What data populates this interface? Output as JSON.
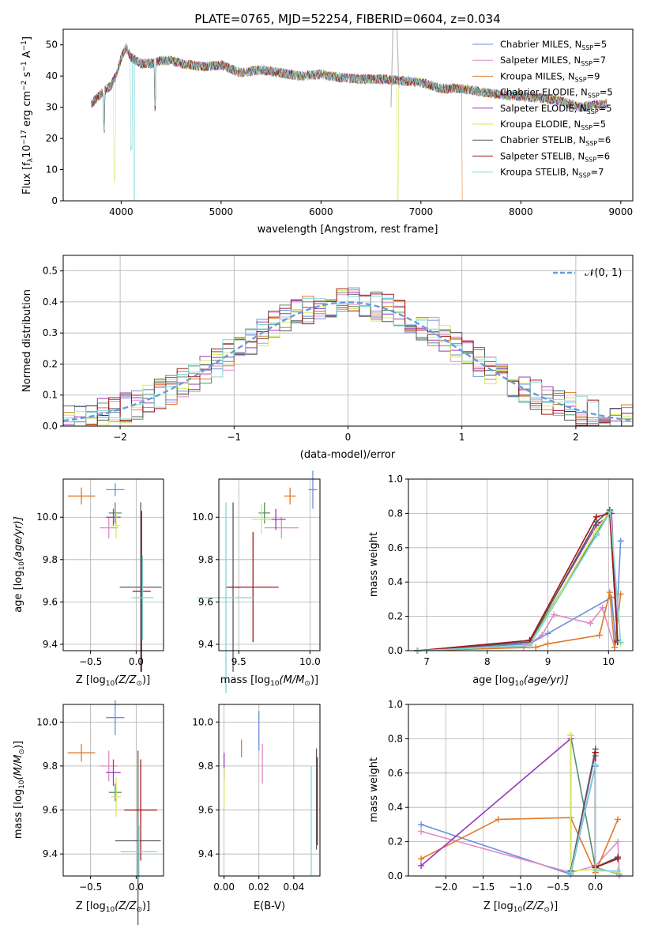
{
  "colors": {
    "chabrier_miles": "#6a8fdc",
    "salpeter_miles": "#e08bc6",
    "kroupa_miles": "#e07a28",
    "chabrier_elodie": "#5a8f6a",
    "salpeter_elodie": "#9a38b8",
    "kroupa_elodie": "#d8e85a",
    "chabrier_stelib": "#5a5a5a",
    "salpeter_stelib": "#a01818",
    "kroupa_stelib": "#7fd6d6",
    "normal_curve": "#6a9adc",
    "masked": "#b8b8b8"
  },
  "series_names": {
    "chabrier_miles": "Chabrier MILES, N",
    "salpeter_miles": "Salpeter MILES, N",
    "kroupa_miles": "Kroupa MILES, N",
    "chabrier_elodie": "Chabrier ELODIE, N",
    "salpeter_elodie": "Salpeter ELODIE, N",
    "kroupa_elodie": "Kroupa ELODIE, N",
    "chabrier_stelib": "Chabrier STELIB, N",
    "salpeter_stelib": "Salpeter STELIB, N",
    "kroupa_stelib": "Kroupa STELIB, N"
  },
  "nssp": {
    "chabrier_miles": "=5",
    "salpeter_miles": "=7",
    "kroupa_miles": "=9",
    "chabrier_elodie": "=5",
    "salpeter_elodie": "=5",
    "kroupa_elodie": "=5",
    "chabrier_stelib": "=6",
    "salpeter_stelib": "=6",
    "kroupa_stelib": "=7"
  },
  "legend_sub": "SSP",
  "chart_data": [
    {
      "id": "spectrum",
      "type": "line",
      "title": "PLATE=0765, MJD=52254, FIBERID=0604, z=0.034",
      "xlabel": "wavelength [Angstrom, rest frame]",
      "ylabel_parts": {
        "a": "Flux [f",
        "sub": "λ",
        "b": "10",
        "sup1": "−17",
        "c": " erg cm",
        "sup2": "−2",
        "d": " s",
        "sup3": "−1",
        "e": " A",
        "sup4": "−1",
        "f": "]"
      },
      "xlim": [
        3420,
        9120
      ],
      "ylim": [
        0,
        55
      ],
      "xticks": [
        4000,
        5000,
        6000,
        7000,
        8000,
        9000
      ],
      "yticks": [
        0,
        10,
        20,
        30,
        40,
        50
      ],
      "grid": false,
      "legend_position": "top-right",
      "continuum": {
        "x": [
          3700,
          3760,
          3820,
          3900,
          3960,
          4000,
          4050,
          4100,
          4200,
          4300,
          4400,
          4500,
          4600,
          4800,
          5000,
          5200,
          5400,
          5600,
          5800,
          6000,
          6200,
          6400,
          6600,
          6800,
          7000,
          7200,
          7400,
          7600,
          7800,
          8000,
          8200,
          8400,
          8600,
          8800
        ],
        "y": [
          31,
          33,
          35,
          37,
          41,
          46,
          49,
          46,
          44,
          44,
          45,
          45,
          44,
          43,
          43.5,
          41,
          42,
          41,
          40,
          40.5,
          39.5,
          39,
          39,
          38.5,
          38,
          36,
          36,
          35,
          34,
          33.5,
          33,
          32,
          30,
          31
        ]
      },
      "features": [
        {
          "x": 3934,
          "depth": 32,
          "series": "kroupa_elodie"
        },
        {
          "x": 4102,
          "depth": 30,
          "series": "kroupa_stelib"
        },
        {
          "x": 4130,
          "depth": 55,
          "series": "kroupa_stelib"
        },
        {
          "x": 4340,
          "depth": 14,
          "series": "all"
        },
        {
          "x": 3830,
          "depth": 12,
          "series": "all"
        },
        {
          "x": 6770,
          "depth": 40,
          "series": "kroupa_elodie"
        },
        {
          "x": 7420,
          "depth": 38,
          "series": "kroupa_miles"
        }
      ],
      "masked_region": {
        "x": [
          6700,
          6780
        ],
        "ymax": 55
      }
    },
    {
      "id": "residuals",
      "type": "histogram",
      "xlabel": "(data-model)/error",
      "ylabel": "Normed distribution",
      "xlim": [
        -2.5,
        2.5
      ],
      "ylim": [
        0,
        0.55
      ],
      "xticks": [
        -2,
        -1,
        0,
        1,
        2
      ],
      "xtick_labels": [
        "−2",
        "−1",
        "0",
        "1",
        "2"
      ],
      "yticks": [
        0.0,
        0.1,
        0.2,
        0.3,
        0.4,
        0.5
      ],
      "ytick_labels": [
        "0.0",
        "0.1",
        "0.2",
        "0.3",
        "0.4",
        "0.5"
      ],
      "grid": true,
      "legend": "𝒩(0, 1)",
      "legend_position": "top-right",
      "bin_width": 0.1
    },
    {
      "id": "age_vs_Z",
      "type": "errorbar",
      "xlabel_parts": {
        "a": "Z [log",
        "sub": "10",
        "b": "(Z/Z",
        "sub2": "⊙",
        "c": ")]"
      },
      "ylabel_parts": {
        "a": "age  [log",
        "sub": "10",
        "b": "(age/yr)]"
      },
      "xlim": [
        -0.8,
        0.3
      ],
      "ylim": [
        9.37,
        10.18
      ],
      "xticks": [
        -0.5,
        0.0
      ],
      "xtick_labels": [
        "−0.5",
        "0.0"
      ],
      "yticks": [
        9.4,
        9.6,
        9.8,
        10.0
      ],
      "ytick_labels": [
        "9.4",
        "9.6",
        "9.8",
        "10.0"
      ],
      "points": [
        {
          "s": "kroupa_miles",
          "x": -0.6,
          "y": 10.1,
          "xe": 0.15,
          "ye": 0.04
        },
        {
          "s": "chabrier_miles",
          "x": -0.23,
          "y": 10.13,
          "xe": 0.1,
          "ye": 0.03
        },
        {
          "s": "salpeter_miles",
          "x": -0.3,
          "y": 9.95,
          "xe": 0.1,
          "ye": 0.05
        },
        {
          "s": "chabrier_elodie",
          "x": -0.23,
          "y": 10.02,
          "xe": 0.07,
          "ye": 0.05
        },
        {
          "s": "salpeter_elodie",
          "x": -0.25,
          "y": 10.0,
          "xe": 0.08,
          "ye": 0.04
        },
        {
          "s": "kroupa_elodie",
          "x": -0.22,
          "y": 9.96,
          "xe": 0.05,
          "ye": 0.06
        },
        {
          "s": "chabrier_stelib",
          "x": 0.05,
          "y": 9.67,
          "xe": 0.23,
          "ye": 0.4
        },
        {
          "s": "salpeter_stelib",
          "x": 0.06,
          "y": 9.65,
          "xe": 0.1,
          "ye": 0.38
        },
        {
          "s": "kroupa_stelib",
          "x": 0.07,
          "y": 9.62,
          "xe": 0.12,
          "ye": 0.2
        }
      ]
    },
    {
      "id": "age_vs_mass",
      "type": "errorbar",
      "xlabel_parts": {
        "a": "mass [log",
        "sub": "10",
        "b": "(M/M",
        "sub2": "⊙",
        "c": ")]"
      },
      "xlim": [
        9.36,
        10.07
      ],
      "ylim": [
        9.37,
        10.18
      ],
      "xticks": [
        9.5,
        10.0
      ],
      "xtick_labels": [
        "9.5",
        "10.0"
      ],
      "yticks": [
        9.4,
        9.6,
        9.8,
        10.0
      ],
      "ytick_labels": [
        "9.4",
        "9.6",
        "9.8",
        "10.0"
      ],
      "points": [
        {
          "s": "kroupa_miles",
          "x": 9.86,
          "y": 10.1,
          "xe": 0.04,
          "ye": 0.04
        },
        {
          "s": "chabrier_miles",
          "x": 10.02,
          "y": 10.13,
          "xe": 0.03,
          "ye": 0.09
        },
        {
          "s": "salpeter_miles",
          "x": 9.8,
          "y": 9.95,
          "xe": 0.12,
          "ye": 0.05
        },
        {
          "s": "chabrier_elodie",
          "x": 9.68,
          "y": 10.02,
          "xe": 0.04,
          "ye": 0.05
        },
        {
          "s": "salpeter_elodie",
          "x": 9.76,
          "y": 9.99,
          "xe": 0.07,
          "ye": 0.05
        },
        {
          "s": "kroupa_elodie",
          "x": 9.66,
          "y": 9.99,
          "xe": 0.07,
          "ye": 0.07
        },
        {
          "s": "chabrier_stelib",
          "x": 9.46,
          "y": 9.67,
          "xe": 0.05,
          "ye": 0.4
        },
        {
          "s": "salpeter_stelib",
          "x": 9.6,
          "y": 9.67,
          "xe": 0.18,
          "ye": 0.26
        },
        {
          "s": "kroupa_stelib",
          "x": 9.41,
          "y": 9.62,
          "xe": 0.2,
          "ye": 0.45
        }
      ]
    },
    {
      "id": "weight_vs_age",
      "type": "line",
      "xlabel_parts": {
        "a": "age  [log",
        "sub": "10",
        "b": "(age/yr)]"
      },
      "ylabel": "mass weight",
      "xlim": [
        6.7,
        10.4
      ],
      "ylim": [
        0,
        1.0
      ],
      "xticks": [
        7,
        8,
        9,
        10
      ],
      "xtick_labels": [
        "7",
        "8",
        "9",
        "10"
      ],
      "yticks": [
        0.0,
        0.2,
        0.4,
        0.6,
        0.8,
        1.0
      ],
      "ytick_labels": [
        "0.0",
        "0.2",
        "0.4",
        "0.6",
        "0.8",
        "1.0"
      ],
      "grid": true,
      "series": [
        {
          "s": "chabrier_miles",
          "x": [
            6.85,
            8.7,
            9.0,
            10.05,
            10.12,
            10.2
          ],
          "y": [
            0.0,
            0.04,
            0.1,
            0.31,
            0.05,
            0.64
          ]
        },
        {
          "s": "salpeter_miles",
          "x": [
            6.85,
            8.6,
            8.9,
            9.1,
            9.7,
            9.9,
            10.1
          ],
          "y": [
            0.0,
            0.02,
            0.09,
            0.21,
            0.16,
            0.25,
            0.02
          ]
        },
        {
          "s": "kroupa_miles",
          "x": [
            6.85,
            8.8,
            9.0,
            9.85,
            10.02,
            10.1,
            10.2
          ],
          "y": [
            0.0,
            0.02,
            0.04,
            0.09,
            0.34,
            0.02,
            0.33
          ]
        },
        {
          "s": "chabrier_elodie",
          "x": [
            6.85,
            8.7,
            9.8,
            10.02,
            10.15
          ],
          "y": [
            0.0,
            0.05,
            0.68,
            0.82,
            0.05
          ]
        },
        {
          "s": "salpeter_elodie",
          "x": [
            6.85,
            8.7,
            9.8,
            10.05,
            10.15
          ],
          "y": [
            0.0,
            0.06,
            0.73,
            0.8,
            0.06
          ]
        },
        {
          "s": "kroupa_elodie",
          "x": [
            6.85,
            8.7,
            9.8,
            10.03,
            10.2
          ],
          "y": [
            0.0,
            0.03,
            0.7,
            0.82,
            0.04
          ]
        },
        {
          "s": "chabrier_stelib",
          "x": [
            6.85,
            8.7,
            9.8,
            10.02,
            10.15
          ],
          "y": [
            0.0,
            0.05,
            0.75,
            0.82,
            0.06
          ]
        },
        {
          "s": "salpeter_stelib",
          "x": [
            6.85,
            8.7,
            9.8,
            10.02,
            10.15
          ],
          "y": [
            0.0,
            0.06,
            0.78,
            0.8,
            0.05
          ]
        },
        {
          "s": "kroupa_stelib",
          "x": [
            6.85,
            8.7,
            9.8,
            10.03,
            10.2
          ],
          "y": [
            0.0,
            0.03,
            0.67,
            0.81,
            0.05
          ]
        }
      ]
    },
    {
      "id": "mass_vs_Z",
      "type": "errorbar",
      "xlabel_parts": {
        "a": "Z [log",
        "sub": "10",
        "b": "(Z/Z",
        "sub2": "⊙",
        "c": ")]"
      },
      "ylabel_parts": {
        "a": "mass [log",
        "sub": "10",
        "b": "(M/M",
        "sub2": "⊙",
        "c": ")]"
      },
      "xlim": [
        -0.8,
        0.3
      ],
      "ylim": [
        9.3,
        10.08
      ],
      "xticks": [
        -0.5,
        0.0
      ],
      "xtick_labels": [
        "−0.5",
        "0.0"
      ],
      "yticks": [
        9.4,
        9.6,
        9.8,
        10.0
      ],
      "ytick_labels": [
        "9.4",
        "9.6",
        "9.8",
        "10.0"
      ],
      "points": [
        {
          "s": "kroupa_miles",
          "x": -0.6,
          "y": 9.86,
          "xe": 0.15,
          "ye": 0.04
        },
        {
          "s": "chabrier_miles",
          "x": -0.23,
          "y": 10.02,
          "xe": 0.1,
          "ye": 0.08
        },
        {
          "s": "salpeter_miles",
          "x": -0.3,
          "y": 9.8,
          "xe": 0.1,
          "ye": 0.07
        },
        {
          "s": "chabrier_elodie",
          "x": -0.23,
          "y": 9.68,
          "xe": 0.07,
          "ye": 0.04
        },
        {
          "s": "salpeter_elodie",
          "x": -0.25,
          "y": 9.77,
          "xe": 0.08,
          "ye": 0.06
        },
        {
          "s": "kroupa_elodie",
          "x": -0.22,
          "y": 9.66,
          "xe": 0.05,
          "ye": 0.09
        },
        {
          "s": "chabrier_stelib",
          "x": 0.02,
          "y": 9.46,
          "xe": 0.25,
          "ye": 0.41
        },
        {
          "s": "salpeter_stelib",
          "x": 0.05,
          "y": 9.6,
          "xe": 0.18,
          "ye": 0.23
        },
        {
          "s": "kroupa_stelib",
          "x": 0.03,
          "y": 9.41,
          "xe": 0.2,
          "ye": 0.12
        }
      ]
    },
    {
      "id": "mass_vs_ebv",
      "type": "errorbar",
      "xlabel": "E(B-V)",
      "xlim": [
        -0.003,
        0.055
      ],
      "ylim": [
        9.3,
        10.08
      ],
      "xticks": [
        0.0,
        0.02,
        0.04
      ],
      "xtick_labels": [
        "0.00",
        "0.02",
        "0.04"
      ],
      "yticks": [
        9.4,
        9.6,
        9.8,
        10.0
      ],
      "ytick_labels": [
        "9.4",
        "9.6",
        "9.8",
        "10.0"
      ],
      "points": [
        {
          "s": "kroupa_miles",
          "x": 0.01,
          "y": 9.88,
          "xe": 0,
          "ye": 0.04
        },
        {
          "s": "chabrier_miles",
          "x": 0.02,
          "y": 9.96,
          "xe": 0,
          "ye": 0.09
        },
        {
          "s": "salpeter_miles",
          "x": 0.022,
          "y": 9.81,
          "xe": 0,
          "ye": 0.09
        },
        {
          "s": "salpeter_elodie",
          "x": 0.0,
          "y": 9.8,
          "xe": 0,
          "ye": 0.06
        },
        {
          "s": "kroupa_elodie",
          "x": 0.0,
          "y": 9.7,
          "xe": 0,
          "ye": 0.09
        },
        {
          "s": "kroupa_stelib",
          "x": 0.05,
          "y": 9.55,
          "xe": 0,
          "ye": 0.25
        },
        {
          "s": "chabrier_stelib",
          "x": 0.053,
          "y": 9.65,
          "xe": 0,
          "ye": 0.23
        },
        {
          "s": "salpeter_stelib",
          "x": 0.0535,
          "y": 9.64,
          "xe": 0,
          "ye": 0.2
        }
      ]
    },
    {
      "id": "weight_vs_Z",
      "type": "line",
      "xlabel_parts": {
        "a": "Z [log",
        "sub": "10",
        "b": "(Z/Z",
        "sub2": "⊙",
        "c": ")]"
      },
      "ylabel": "mass weight",
      "xlim": [
        -2.5,
        0.5
      ],
      "ylim": [
        0,
        1.0
      ],
      "xticks": [
        -2.0,
        -1.5,
        -1.0,
        -0.5,
        0.0
      ],
      "xtick_labels": [
        "−2.0",
        "−1.5",
        "−1.0",
        "−0.5",
        "0.0"
      ],
      "yticks": [
        0.0,
        0.2,
        0.4,
        0.6,
        0.8,
        1.0
      ],
      "ytick_labels": [
        "0.0",
        "0.2",
        "0.4",
        "0.6",
        "0.8",
        "1.0"
      ],
      "grid": true,
      "series": [
        {
          "s": "chabrier_miles",
          "x": [
            -2.33,
            -0.33,
            0.0,
            0.0,
            0.32
          ],
          "y": [
            0.3,
            0.01,
            0.64,
            0.05,
            0.01
          ]
        },
        {
          "s": "salpeter_miles",
          "x": [
            -2.33,
            -0.33,
            0.0,
            0.3,
            0.32
          ],
          "y": [
            0.26,
            0.02,
            0.06,
            0.2,
            0.0
          ]
        },
        {
          "s": "kroupa_miles",
          "x": [
            -2.33,
            -1.3,
            -0.33,
            0.0,
            0.3
          ],
          "y": [
            0.1,
            0.33,
            0.34,
            0.02,
            0.33
          ]
        },
        {
          "s": "chabrier_elodie",
          "x": [
            -0.33,
            0.0,
            0.0
          ],
          "y": [
            0.82,
            0.05,
            0.7
          ]
        },
        {
          "s": "salpeter_elodie",
          "x": [
            -2.33,
            -0.33,
            -0.33,
            0.0,
            0.0
          ],
          "y": [
            0.06,
            0.8,
            0.03,
            0.72,
            0.06
          ]
        },
        {
          "s": "kroupa_elodie",
          "x": [
            -0.33,
            -0.33,
            0.0,
            0.3
          ],
          "y": [
            0.82,
            0.03,
            0.04,
            0.02
          ]
        },
        {
          "s": "chabrier_stelib",
          "x": [
            -0.33,
            0.0,
            0.0,
            0.3
          ],
          "y": [
            0.03,
            0.74,
            0.05,
            0.11
          ]
        },
        {
          "s": "salpeter_stelib",
          "x": [
            0.0,
            0.0,
            0.3
          ],
          "y": [
            0.72,
            0.05,
            0.1
          ]
        },
        {
          "s": "kroupa_stelib",
          "x": [
            -0.33,
            0.0,
            0.0,
            0.3
          ],
          "y": [
            0.02,
            0.65,
            0.03,
            0.03
          ]
        }
      ]
    }
  ]
}
